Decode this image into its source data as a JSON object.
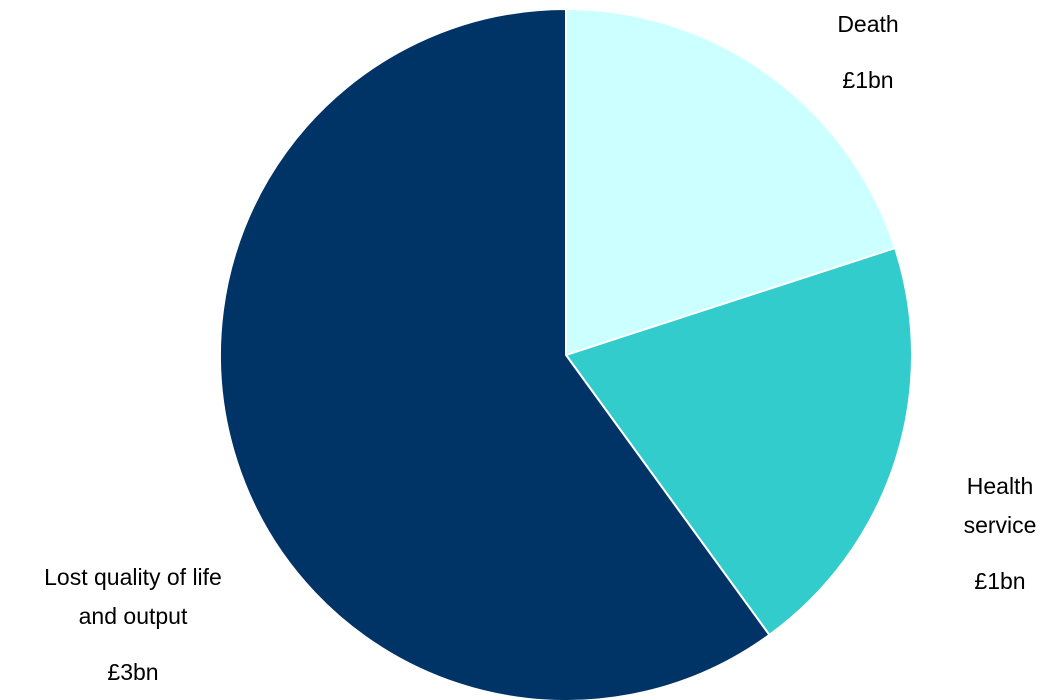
{
  "chart_data": {
    "type": "pie",
    "title": "",
    "slices": [
      {
        "label_lines": [
          "Death"
        ],
        "value_label": "£1bn",
        "value": 1,
        "color": "#CCFFFF"
      },
      {
        "label_lines": [
          "Health",
          "service"
        ],
        "value_label": "£1bn",
        "value": 1,
        "color": "#33CCCC"
      },
      {
        "label_lines": [
          "Lost quality of life",
          "and output"
        ],
        "value_label": "£3bn",
        "value": 3,
        "color": "#003366"
      }
    ],
    "legend": "none"
  }
}
